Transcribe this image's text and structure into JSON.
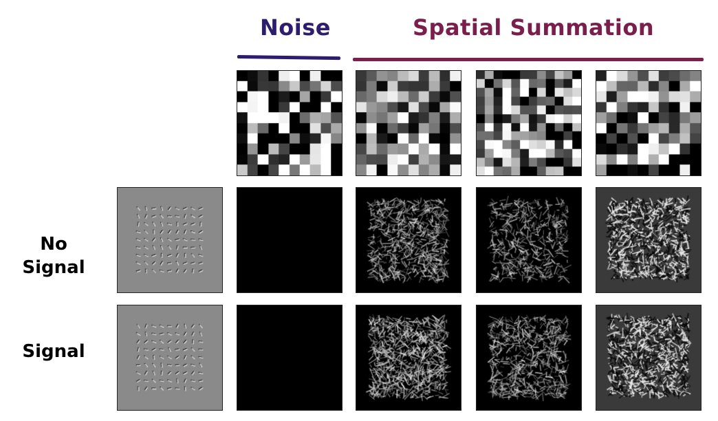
{
  "headers": {
    "noise": "Noise",
    "spatial_summation": "Spatial Summation"
  },
  "row_labels": {
    "no_signal_line1": "No",
    "no_signal_line2": "Signal",
    "signal": "Signal"
  },
  "colors": {
    "noise_header": "#2d1d6e",
    "spatial_summation_header": "#7a1e4c",
    "stimulus_gray": "#8a8a8a",
    "response_black": "#000000",
    "response_dark_gray": "#3a3a3a"
  }
}
